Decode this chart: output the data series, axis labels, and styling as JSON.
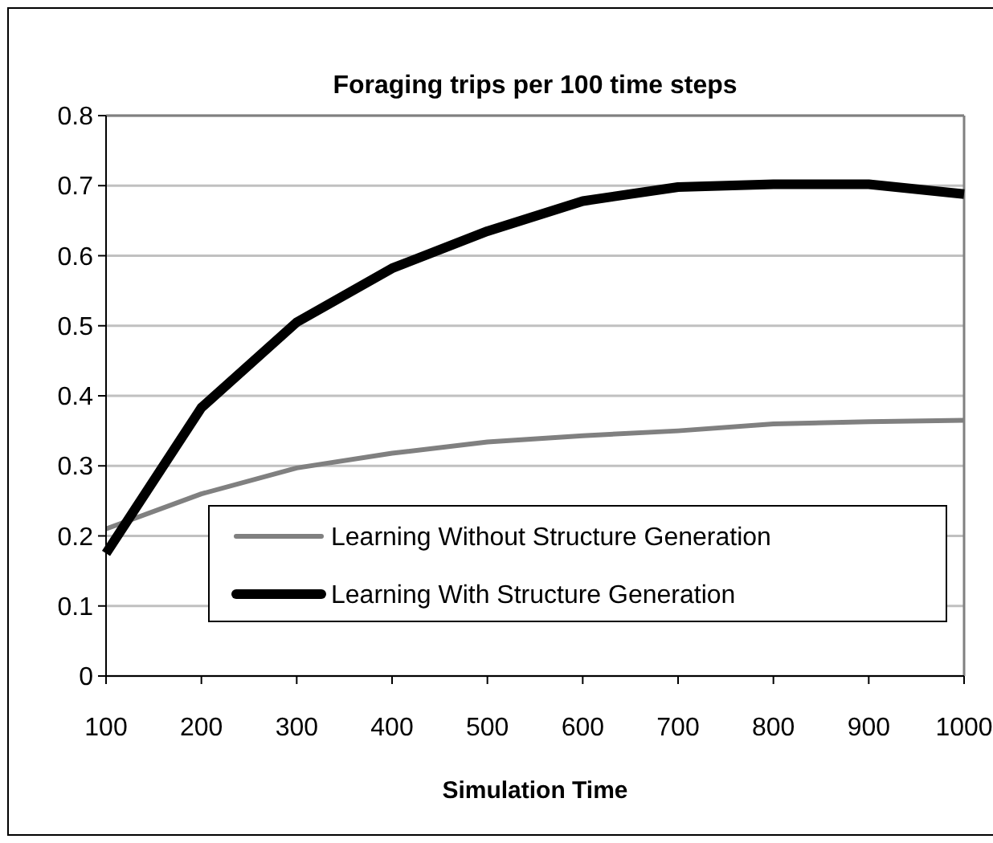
{
  "chart_data": {
    "type": "line",
    "title": "Foraging trips per 100 time steps",
    "xlabel": "Simulation Time",
    "x": [
      100,
      200,
      300,
      400,
      500,
      600,
      700,
      800,
      900,
      1000
    ],
    "series": [
      {
        "name": "Learning Without Structure Generation",
        "color": "#808080",
        "values": [
          0.21,
          0.26,
          0.297,
          0.318,
          0.334,
          0.343,
          0.35,
          0.36,
          0.363,
          0.365
        ]
      },
      {
        "name": "Learning With Structure Generation",
        "color": "#000000",
        "values": [
          0.175,
          0.383,
          0.505,
          0.582,
          0.635,
          0.678,
          0.698,
          0.702,
          0.702,
          0.688
        ]
      }
    ],
    "xlim": [
      100,
      1000
    ],
    "xticks": [
      100,
      200,
      300,
      400,
      500,
      600,
      700,
      800,
      900,
      1000
    ],
    "ylim": [
      0,
      0.8
    ],
    "yticks": [
      0,
      0.1,
      0.2,
      0.3,
      0.4,
      0.5,
      0.6,
      0.7,
      0.8
    ],
    "grid": "y",
    "legend": "bottom right",
    "marker": "none",
    "line_style": "solid"
  }
}
